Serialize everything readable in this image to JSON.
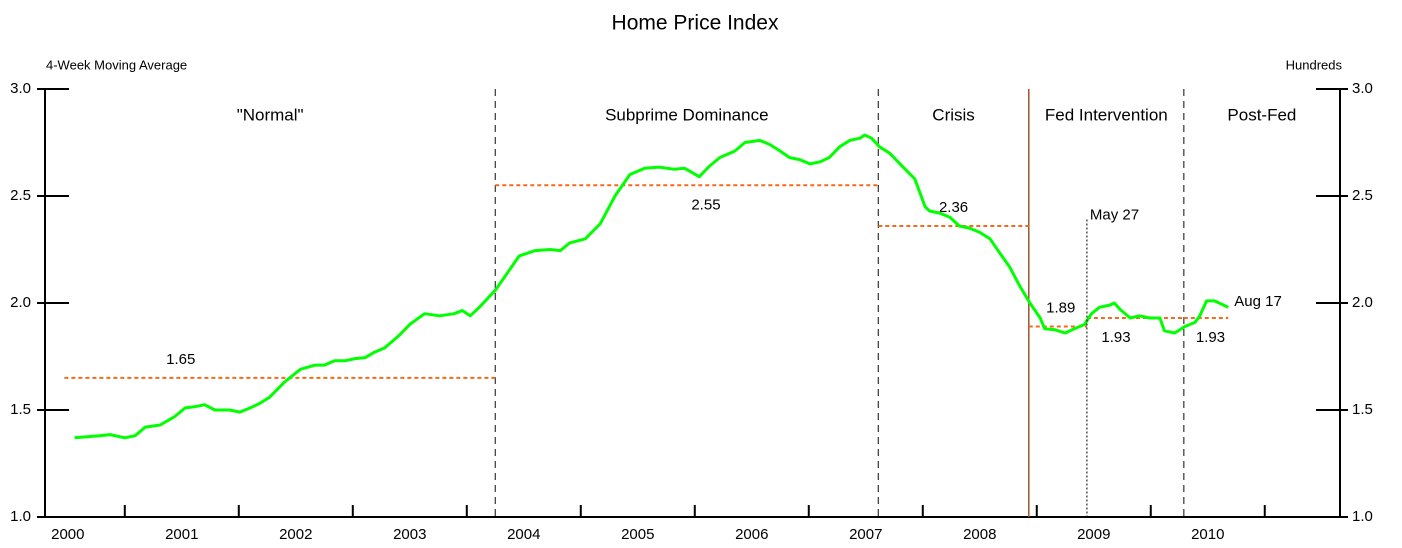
{
  "chart_data": {
    "type": "line",
    "title": "Home Price Index",
    "y_axis_label": "4-Week Moving Average",
    "y2_axis_label": "Hundreds",
    "xlim": [
      1999.8,
      2011.16
    ],
    "xticks": [
      2000,
      2001,
      2002,
      2003,
      2004,
      2005,
      2006,
      2007,
      2008,
      2009,
      2010
    ],
    "x_minor_ticks": [
      2000.5,
      2001.5,
      2002.5,
      2003.5,
      2004.5,
      2005.5,
      2006.5,
      2007.5,
      2008.5,
      2009.5,
      2010.5
    ],
    "ylim": [
      1.0,
      3.0
    ],
    "yticks": [
      {
        "value": 1.0,
        "label": "1.0"
      },
      {
        "value": 1.5,
        "label": "1.5"
      },
      {
        "value": 2.0,
        "label": "2.0"
      },
      {
        "value": 2.5,
        "label": "2.5"
      },
      {
        "value": 3.0,
        "label": "3.0"
      }
    ],
    "y2lim": [
      1.0,
      3.0
    ],
    "y2ticks": [
      {
        "value": 1.0,
        "label": "1.0"
      },
      {
        "value": 1.5,
        "label": "1.5"
      },
      {
        "value": 2.0,
        "label": "2.0"
      },
      {
        "value": 2.5,
        "label": "2.5"
      },
      {
        "value": 3.0,
        "label": "3.0"
      }
    ],
    "series": [
      {
        "color": "#00ff00",
        "x": [
          2000.06,
          2000.28,
          2000.37,
          2000.5,
          2000.59,
          2000.68,
          2000.81,
          2000.94,
          2001.03,
          2001.11,
          2001.2,
          2001.29,
          2001.42,
          2001.51,
          2001.6,
          2001.68,
          2001.77,
          2001.9,
          2002.04,
          2002.17,
          2002.25,
          2002.34,
          2002.43,
          2002.52,
          2002.61,
          2002.69,
          2002.78,
          2002.91,
          2003.0,
          2003.13,
          2003.26,
          2003.39,
          2003.46,
          2003.53,
          2003.61,
          2003.75,
          2003.83,
          2003.96,
          2004.1,
          2004.23,
          2004.32,
          2004.4,
          2004.54,
          2004.67,
          2004.8,
          2004.93,
          2005.06,
          2005.19,
          2005.32,
          2005.41,
          2005.54,
          2005.63,
          2005.72,
          2005.85,
          2005.94,
          2006.07,
          2006.16,
          2006.25,
          2006.33,
          2006.42,
          2006.51,
          2006.6,
          2006.68,
          2006.77,
          2006.86,
          2006.95,
          2006.99,
          2007.05,
          2007.12,
          2007.21,
          2007.3,
          2007.43,
          2007.52,
          2007.56,
          2007.65,
          2007.74,
          2007.82,
          2007.91,
          2008.0,
          2008.09,
          2008.18,
          2008.26,
          2008.35,
          2008.44,
          2008.53,
          2008.57,
          2008.66,
          2008.75,
          2008.83,
          2008.92,
          2008.98,
          2009.05,
          2009.14,
          2009.18,
          2009.23,
          2009.32,
          2009.4,
          2009.49,
          2009.58,
          2009.62,
          2009.71,
          2009.8,
          2009.89,
          2009.93,
          2009.99,
          2010.06,
          2010.18
        ],
        "values": [
          1.37,
          1.38,
          1.385,
          1.37,
          1.38,
          1.42,
          1.43,
          1.47,
          1.51,
          1.515,
          1.525,
          1.5,
          1.5,
          1.49,
          1.51,
          1.53,
          1.56,
          1.63,
          1.69,
          1.71,
          1.71,
          1.73,
          1.73,
          1.74,
          1.745,
          1.77,
          1.79,
          1.85,
          1.9,
          1.95,
          1.94,
          1.95,
          1.965,
          1.94,
          1.98,
          2.06,
          2.12,
          2.22,
          2.245,
          2.25,
          2.245,
          2.28,
          2.3,
          2.37,
          2.5,
          2.6,
          2.63,
          2.635,
          2.625,
          2.63,
          2.59,
          2.64,
          2.68,
          2.71,
          2.75,
          2.76,
          2.74,
          2.71,
          2.68,
          2.67,
          2.65,
          2.66,
          2.68,
          2.73,
          2.76,
          2.77,
          2.785,
          2.77,
          2.73,
          2.7,
          2.65,
          2.58,
          2.45,
          2.43,
          2.42,
          2.4,
          2.36,
          2.35,
          2.33,
          2.3,
          2.23,
          2.17,
          2.08,
          2.0,
          1.93,
          1.88,
          1.875,
          1.86,
          1.88,
          1.9,
          1.95,
          1.98,
          1.99,
          2.0,
          1.97,
          1.93,
          1.94,
          1.93,
          1.93,
          1.87,
          1.86,
          1.89,
          1.91,
          1.94,
          2.01,
          2.01,
          1.98
        ]
      }
    ],
    "periods": [
      "\"Normal\"",
      "Subprime Dominance",
      "Crisis",
      "Fed Intervention",
      "Post-Fed"
    ],
    "boundaries": [
      {
        "x": 2003.75,
        "style": "dashed",
        "color": "#333333"
      },
      {
        "x": 2007.11,
        "style": "dashed",
        "color": "#333333"
      },
      {
        "x": 2008.43,
        "style": "solid",
        "color": "#a0522d"
      },
      {
        "x": 2009.79,
        "style": "dashed",
        "color": "#333333"
      }
    ],
    "means": {
      "color": "#f26b1d",
      "start": [
        1999.97,
        2003.75,
        2007.11,
        2008.43,
        2008.94,
        2009.79
      ],
      "end": [
        2003.75,
        2007.11,
        2008.43,
        2008.94,
        2009.79,
        2010.18
      ],
      "values": [
        1.65,
        2.55,
        2.36,
        1.89,
        1.93,
        1.93
      ]
    },
    "annotations": [
      {
        "text": "May 27",
        "x": 2008.94,
        "y": 2.39
      },
      {
        "text": "Aug 17",
        "x": 2010.18,
        "y": 1.98
      }
    ]
  }
}
